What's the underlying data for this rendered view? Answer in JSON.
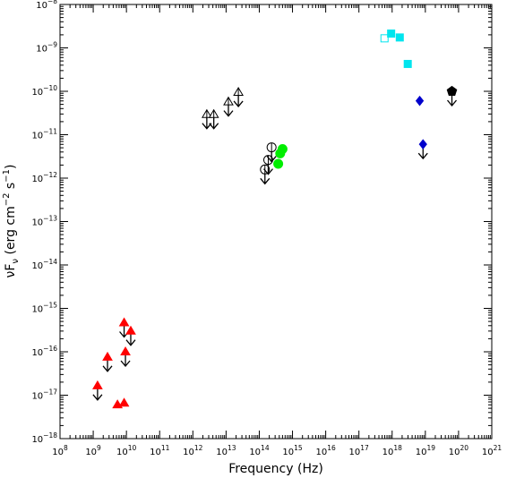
{
  "chart_data": {
    "type": "scatter",
    "title": "",
    "xlabel": "Frequency (Hz)",
    "ylabel_parts": {
      "nu": "ν",
      "F": "F",
      "sub": "ν",
      "units_open": " (erg cm",
      "exp1": "−2",
      "s": " s",
      "exp2": "−1",
      "units_close": ")"
    },
    "x_log": true,
    "y_log": true,
    "xlim_exp": [
      8,
      21
    ],
    "ylim_exp": [
      -18,
      -8
    ],
    "grid": false,
    "x_tick_labels": [
      {
        "exp": 8,
        "base": "10",
        "sup": "8"
      },
      {
        "exp": 9,
        "base": "10",
        "sup": "9"
      },
      {
        "exp": 10,
        "base": "10",
        "sup": "10"
      },
      {
        "exp": 11,
        "base": "10",
        "sup": "11"
      },
      {
        "exp": 12,
        "base": "10",
        "sup": "12"
      },
      {
        "exp": 13,
        "base": "10",
        "sup": "13"
      },
      {
        "exp": 14,
        "base": "10",
        "sup": "14"
      },
      {
        "exp": 15,
        "base": "10",
        "sup": "15"
      },
      {
        "exp": 16,
        "base": "10",
        "sup": "16"
      },
      {
        "exp": 17,
        "base": "10",
        "sup": "17"
      },
      {
        "exp": 18,
        "base": "10",
        "sup": "18"
      },
      {
        "exp": 19,
        "base": "10",
        "sup": "19"
      },
      {
        "exp": 20,
        "base": "10",
        "sup": "20"
      },
      {
        "exp": 21,
        "base": "10",
        "sup": "21"
      }
    ],
    "y_tick_labels": [
      {
        "exp": -8,
        "base": "10",
        "sup": "−8"
      },
      {
        "exp": -9,
        "base": "10",
        "sup": "−9"
      },
      {
        "exp": -10,
        "base": "10",
        "sup": "−10"
      },
      {
        "exp": -11,
        "base": "10",
        "sup": "−11"
      },
      {
        "exp": -12,
        "base": "10",
        "sup": "−12"
      },
      {
        "exp": -13,
        "base": "10",
        "sup": "−13"
      },
      {
        "exp": -14,
        "base": "10",
        "sup": "−14"
      },
      {
        "exp": -15,
        "base": "10",
        "sup": "−15"
      },
      {
        "exp": -16,
        "base": "10",
        "sup": "−16"
      },
      {
        "exp": -17,
        "base": "10",
        "sup": "−17"
      },
      {
        "exp": -18,
        "base": "10",
        "sup": "−18"
      }
    ],
    "series": [
      {
        "marker": "triangle-filled",
        "color": "#ff0000",
        "upper_limits": true,
        "log_x": [
          9.13,
          9.43,
          9.93,
          10.13,
          9.97
        ],
        "log_y": [
          -16.78,
          -16.12,
          -15.33,
          -15.52,
          -16.0
        ]
      },
      {
        "marker": "triangle-filled",
        "color": "#ff0000",
        "upper_limits": false,
        "log_x": [
          9.73,
          9.93
        ],
        "log_y": [
          -17.22,
          -17.18
        ]
      },
      {
        "marker": "triangle-open",
        "color": "#000000",
        "upper_limits": true,
        "log_x": [
          12.42,
          12.63,
          13.07,
          13.37
        ],
        "log_y": [
          -10.53,
          -10.53,
          -10.24,
          -10.02
        ]
      },
      {
        "marker": "circle-open",
        "color": "#000000",
        "upper_limits": true,
        "log_x": [
          14.17,
          14.27,
          14.37
        ],
        "log_y": [
          -11.8,
          -11.58,
          -11.29
        ]
      },
      {
        "marker": "circle-filled",
        "color": "#00ee00",
        "upper_limits": false,
        "log_x": [
          14.57,
          14.63,
          14.7
        ],
        "log_y": [
          -11.67,
          -11.43,
          -11.33
        ]
      },
      {
        "marker": "square-open",
        "color": "#00e5ee",
        "upper_limits": false,
        "log_x": [
          17.77
        ],
        "log_y": [
          -8.78
        ]
      },
      {
        "marker": "square-filled",
        "color": "#00e5ee",
        "upper_limits": false,
        "log_x": [
          17.97,
          18.23,
          18.47
        ],
        "log_y": [
          -8.67,
          -8.76,
          -9.37
        ]
      },
      {
        "marker": "diamond-filled",
        "color": "#0000cc",
        "upper_limits": false,
        "log_x": [
          18.83
        ],
        "log_y": [
          -10.22
        ]
      },
      {
        "marker": "diamond-filled",
        "color": "#0000cc",
        "upper_limits": true,
        "log_x": [
          18.93
        ],
        "log_y": [
          -11.22
        ]
      },
      {
        "marker": "pentagon-filled",
        "color": "#000000",
        "upper_limits": true,
        "log_x": [
          19.8
        ],
        "log_y": [
          -10.0
        ]
      }
    ]
  }
}
